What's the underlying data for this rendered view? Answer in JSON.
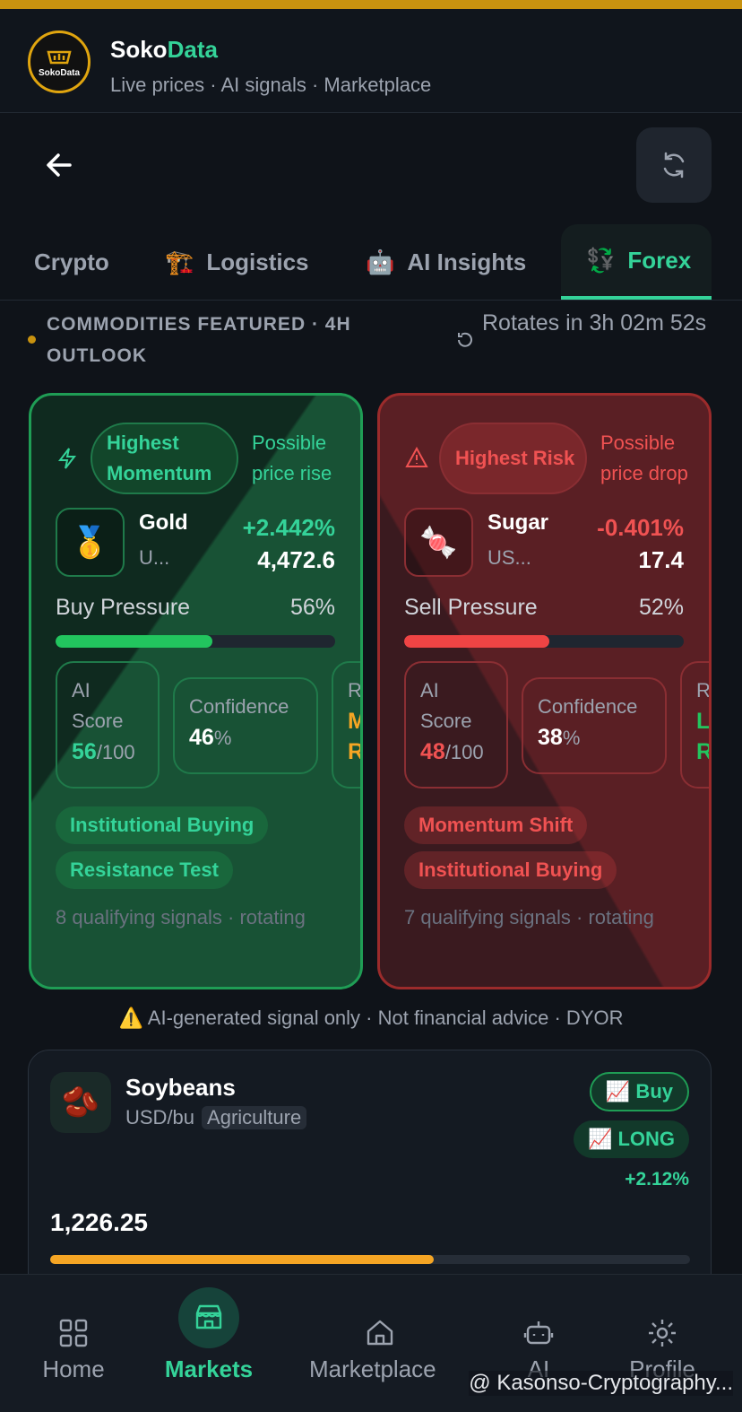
{
  "header": {
    "logo_text": "SokoData",
    "brand_a": "Soko",
    "brand_b": "Data",
    "subtitle": "Live prices · AI signals · Marketplace"
  },
  "tabs": [
    {
      "label": "Crypto"
    },
    {
      "icon": "🏗️",
      "label": "Logistics"
    },
    {
      "icon": "🤖",
      "label": "AI Insights"
    },
    {
      "icon": "💱",
      "label": "Forex"
    }
  ],
  "featured": {
    "heading": "COMMODITIES FEATURED · 4H OUTLOOK",
    "rotates": "Rotates in 3h 02m 52s"
  },
  "cards": [
    {
      "badge": "Highest Momentum",
      "hint": "Possible price rise",
      "icon": "🥇",
      "name": "Gold",
      "code": "U...",
      "change": "+2.442%",
      "price": "4,472.6",
      "pressure_label": "Buy Pressure",
      "pressure": {
        "value": 56,
        "label": "56%"
      },
      "ai_label": "AI Score",
      "ai_score": "56",
      "ai_max": "/100",
      "conf_label": "Confidence",
      "conf": "46",
      "conf_unit": "%",
      "third_label": "R",
      "third_lines": [
        "M",
        "R"
      ],
      "tags": [
        "Institutional Buying",
        "Resistance Test"
      ],
      "signals": "8 qualifying signals · rotating"
    },
    {
      "badge": "Highest Risk",
      "hint": "Possible price drop",
      "icon": "🍬",
      "name": "Sugar",
      "code": "US...",
      "change": "-0.401%",
      "price": "17.4",
      "pressure_label": "Sell Pressure",
      "pressure": {
        "value": 52,
        "label": "52%"
      },
      "ai_label": "AI Score",
      "ai_score": "48",
      "ai_max": "/100",
      "conf_label": "Confidence",
      "conf": "38",
      "conf_unit": "%",
      "third_label": "R",
      "third_lines": [
        "L",
        "R"
      ],
      "tags": [
        "Momentum Shift",
        "Institutional Buying"
      ],
      "signals": "7 qualifying signals · rotating"
    }
  ],
  "disclaimer": "⚠️ AI-generated signal only · Not financial advice · DYOR",
  "listing": {
    "icon": "🫘",
    "name": "Soybeans",
    "unit": "USD/bu",
    "category": "Agriculture",
    "action": "📈 Buy",
    "position": "📈 LONG",
    "change": "+2.12%",
    "price": "1,226.25"
  },
  "nav": [
    "Home",
    "Markets",
    "Marketplace",
    "AI",
    "Profile"
  ],
  "watermark": "@ Kasonso-Cryptography..."
}
